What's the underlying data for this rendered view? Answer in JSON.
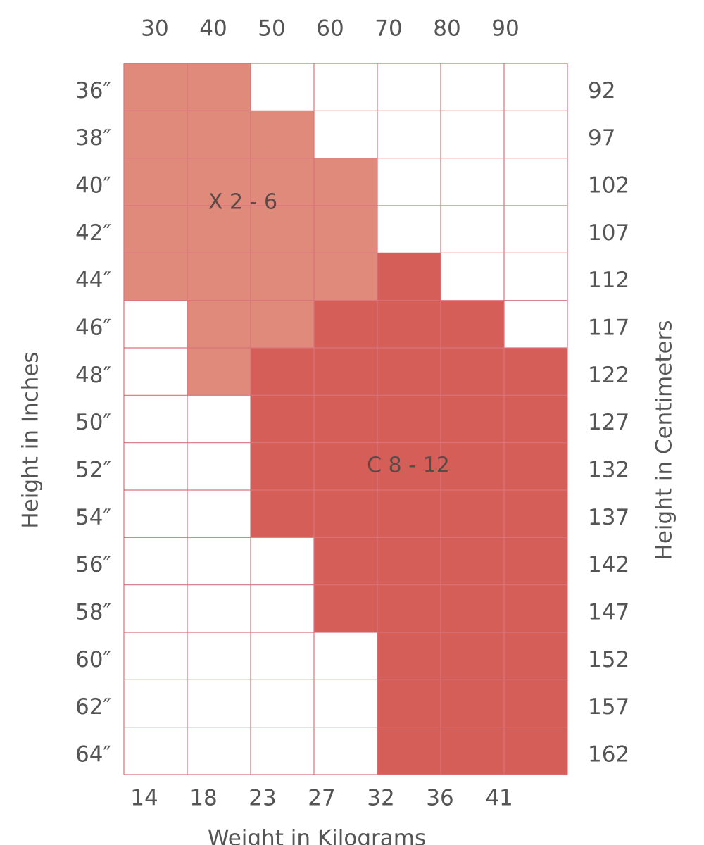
{
  "grid": {
    "top_labels": [
      "30",
      "40",
      "50",
      "60",
      "70",
      "80",
      "90"
    ],
    "bottom_labels": [
      "14",
      "18",
      "23",
      "27",
      "32",
      "36",
      "41"
    ],
    "bottom_title": "Weight in Kilograms",
    "left_title": "Height in Inches",
    "right_title": "Height in Centimeters",
    "left_labels": [
      "36″",
      "38″",
      "40″",
      "42″",
      "44″",
      "46″",
      "48″",
      "50″",
      "52″",
      "54″",
      "56″",
      "58″",
      "60″",
      "62″",
      "64″"
    ],
    "right_labels": [
      "92",
      "97",
      "102",
      "107",
      "112",
      "117",
      "122",
      "127",
      "132",
      "137",
      "142",
      "147",
      "152",
      "157",
      "162"
    ],
    "zones": [
      {
        "label": "X 2 - 6",
        "color": "#e08a7c"
      },
      {
        "label": "C 8 - 12",
        "color": "#d65e59"
      }
    ],
    "cells": [
      [
        0,
        0,
        null,
        null,
        null,
        null,
        null
      ],
      [
        0,
        0,
        0,
        null,
        null,
        null,
        null
      ],
      [
        0,
        0,
        0,
        0,
        null,
        null,
        null
      ],
      [
        0,
        0,
        0,
        0,
        null,
        null,
        null
      ],
      [
        0,
        0,
        0,
        0,
        1,
        null,
        null
      ],
      [
        null,
        0,
        0,
        1,
        1,
        1,
        null
      ],
      [
        null,
        0,
        1,
        1,
        1,
        1,
        1
      ],
      [
        null,
        null,
        1,
        1,
        1,
        1,
        1
      ],
      [
        null,
        null,
        1,
        1,
        1,
        1,
        1
      ],
      [
        null,
        null,
        1,
        1,
        1,
        1,
        1
      ],
      [
        null,
        null,
        null,
        1,
        1,
        1,
        1
      ],
      [
        null,
        null,
        null,
        1,
        1,
        1,
        1
      ],
      [
        null,
        null,
        null,
        null,
        1,
        1,
        1
      ],
      [
        null,
        null,
        null,
        null,
        1,
        1,
        1
      ],
      [
        null,
        null,
        null,
        null,
        1,
        1,
        1
      ]
    ]
  }
}
